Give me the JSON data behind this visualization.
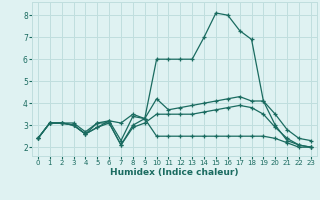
{
  "xlabel": "Humidex (Indice chaleur)",
  "background_color": "#dff2f2",
  "grid_color": "#c0dede",
  "line_color": "#1a6b60",
  "xlim": [
    -0.5,
    23.5
  ],
  "ylim": [
    1.6,
    8.6
  ],
  "xticks": [
    0,
    1,
    2,
    3,
    4,
    5,
    6,
    7,
    8,
    9,
    10,
    11,
    12,
    13,
    14,
    15,
    16,
    17,
    18,
    19,
    20,
    21,
    22,
    23
  ],
  "yticks": [
    2,
    3,
    4,
    5,
    6,
    7,
    8
  ],
  "line1_y": [
    2.4,
    3.1,
    3.1,
    3.1,
    2.7,
    3.1,
    3.1,
    2.1,
    3.0,
    3.3,
    6.0,
    6.0,
    6.0,
    6.0,
    7.0,
    8.1,
    8.0,
    7.3,
    6.9,
    4.1,
    3.0,
    2.3,
    2.1,
    2.0
  ],
  "line2_y": [
    2.4,
    3.1,
    3.1,
    3.0,
    2.6,
    3.1,
    3.2,
    3.1,
    3.5,
    3.3,
    4.2,
    3.7,
    3.8,
    3.9,
    4.0,
    4.1,
    4.2,
    4.3,
    4.1,
    4.1,
    3.5,
    2.8,
    2.4,
    2.3
  ],
  "line3_y": [
    2.4,
    3.1,
    3.1,
    3.0,
    2.6,
    2.9,
    3.2,
    2.3,
    3.4,
    3.3,
    2.5,
    2.5,
    2.5,
    2.5,
    2.5,
    2.5,
    2.5,
    2.5,
    2.5,
    2.5,
    2.4,
    2.2,
    2.0,
    2.0
  ],
  "line4_y": [
    2.4,
    3.1,
    3.1,
    3.0,
    2.6,
    2.9,
    3.1,
    2.1,
    2.9,
    3.1,
    3.5,
    3.5,
    3.5,
    3.5,
    3.6,
    3.7,
    3.8,
    3.9,
    3.8,
    3.5,
    2.9,
    2.4,
    2.1,
    2.0
  ]
}
